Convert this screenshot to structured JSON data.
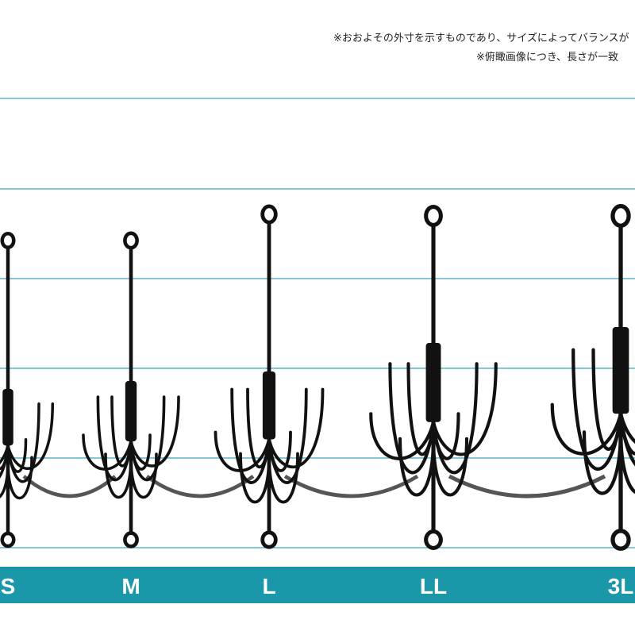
{
  "notes": [
    "※おおよその外寸を示すものであり、サイズによってバランスが",
    "※俯瞰画像につき、長さが一致"
  ],
  "sizes": [
    "S",
    "M",
    "L",
    "LL",
    "3L"
  ]
}
